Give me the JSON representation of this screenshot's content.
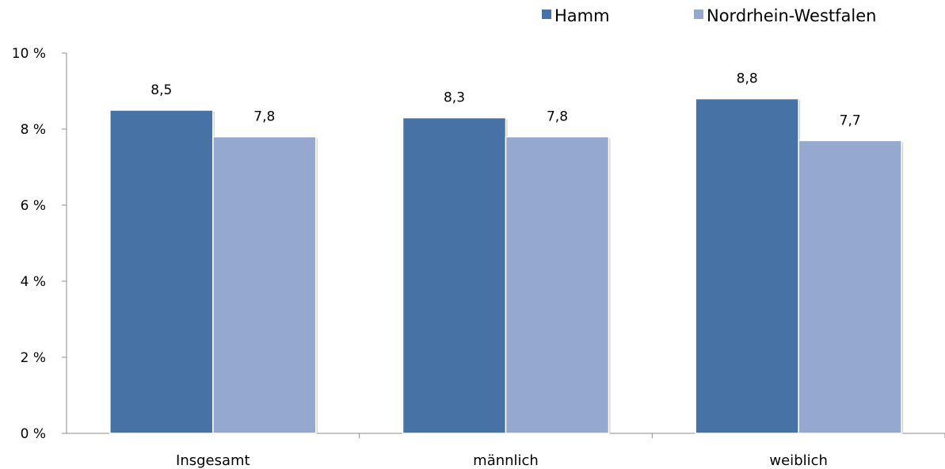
{
  "chart_data": {
    "type": "bar",
    "categories": [
      "Insgesamt",
      "männlich",
      "weiblich"
    ],
    "series": [
      {
        "name": "Hamm",
        "values": [
          8.5,
          8.3,
          8.8
        ],
        "labels": [
          "8,5",
          "8,3",
          "8,8"
        ],
        "color": "#4672a6"
      },
      {
        "name": "Nordrhein-Westfalen",
        "values": [
          7.8,
          7.8,
          7.7
        ],
        "labels": [
          "7,8",
          "7,8",
          "7,7"
        ],
        "color": "#95a9d0"
      }
    ],
    "ylim": [
      0,
      10
    ],
    "yticks": [
      0,
      2,
      4,
      6,
      8,
      10
    ],
    "ytick_labels": [
      "0 %",
      "2 %",
      "4 %",
      "6 %",
      "8 %",
      "10 %"
    ],
    "title": "",
    "xlabel": "",
    "ylabel": "",
    "grid": false,
    "legend_position": "top-right"
  }
}
